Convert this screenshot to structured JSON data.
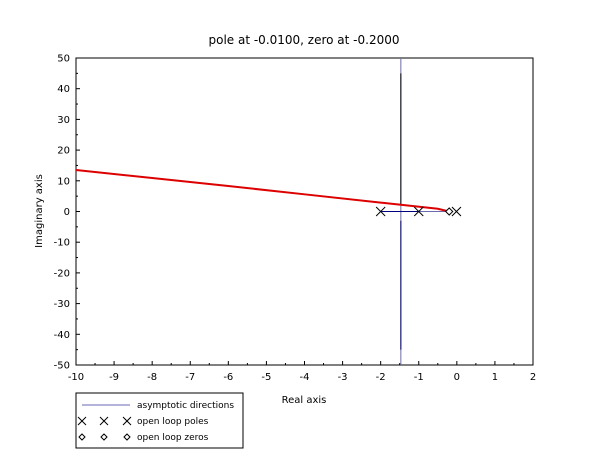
{
  "chart_data": {
    "type": "line",
    "title": "pole at -0.0100, zero at -0.2000",
    "xlabel": "Real axis",
    "ylabel": "Imaginary axis",
    "xlim": [
      -10,
      2
    ],
    "ylim": [
      -50,
      50
    ],
    "x_ticks": [
      -10,
      -9,
      -8,
      -7,
      -6,
      -5,
      -4,
      -3,
      -2,
      -1,
      0,
      1,
      2
    ],
    "y_ticks": [
      -50,
      -40,
      -30,
      -20,
      -10,
      0,
      10,
      20,
      30,
      40,
      50
    ],
    "grid": false,
    "legend_position": "bottom-left, below plot",
    "series": [
      {
        "name": "asymptotic directions",
        "style": "line",
        "color": "#6a6ab4",
        "points": [
          [
            -1.47,
            50
          ],
          [
            -1.47,
            -50
          ]
        ]
      },
      {
        "name": "asymptotic directions",
        "style": "line",
        "color": "#6a6ab4",
        "points": [
          [
            -1.47,
            0
          ],
          [
            -0.2,
            0
          ]
        ]
      },
      {
        "name": "branch",
        "style": "line",
        "color": "#000000",
        "points": [
          [
            -1.47,
            45
          ],
          [
            -1.47,
            2
          ]
        ]
      },
      {
        "name": "branch",
        "style": "line",
        "color": "#000080",
        "points": [
          [
            -1.47,
            -3
          ],
          [
            -1.47,
            -45
          ]
        ]
      },
      {
        "name": "branch",
        "style": "line",
        "color": "#000080",
        "points": [
          [
            -1.99,
            0
          ],
          [
            -1.47,
            0
          ],
          [
            -1.02,
            0
          ]
        ]
      },
      {
        "name": "branch",
        "style": "line",
        "color": "#dd0000",
        "points": [
          [
            -10,
            13.5
          ],
          [
            -8,
            10.9
          ],
          [
            -6,
            8.3
          ],
          [
            -4,
            5.6
          ],
          [
            -2,
            2.9
          ],
          [
            -1.47,
            2.2
          ],
          [
            -0.5,
            0.9
          ],
          [
            -0.2,
            0
          ]
        ]
      },
      {
        "name": "open loop poles",
        "style": "marker",
        "marker": "x",
        "points": [
          [
            -2,
            0
          ],
          [
            -1,
            0
          ],
          [
            -0.01,
            0
          ]
        ]
      },
      {
        "name": "open loop zeros",
        "style": "marker",
        "marker": "diamond",
        "points": [
          [
            -0.2,
            0
          ]
        ]
      }
    ]
  },
  "legend": [
    {
      "label": "asymptotic directions",
      "marker": "line",
      "color": "#6a6ab4"
    },
    {
      "label": "open loop poles",
      "marker": "x",
      "color": "#000000"
    },
    {
      "label": "open loop zeros",
      "marker": "diamond",
      "color": "#000000"
    }
  ]
}
